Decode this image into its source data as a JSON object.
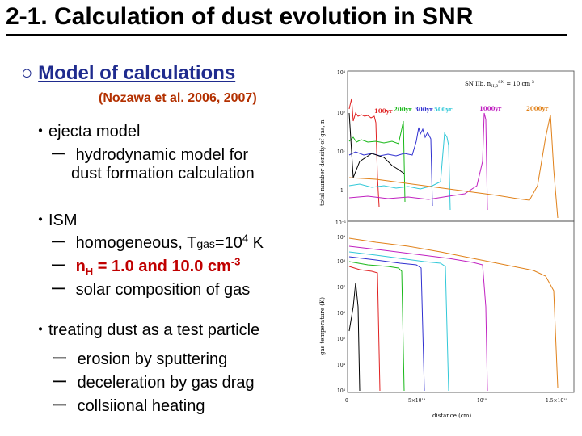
{
  "title": "2-1. Calculation of dust evolution in SNR",
  "subheading": {
    "marker": "○",
    "text": "Model of calculations"
  },
  "citation": "(Nozawa et al. 2006, 2007)",
  "bullets": [
    {
      "marker": "・",
      "text": "ejecta model",
      "items": [
        {
          "dash": "ー",
          "line1": "hydrodynamic model for",
          "line2": "dust formation calculation"
        }
      ]
    },
    {
      "marker": "・",
      "text": "ISM",
      "items": [
        {
          "dash": "ー",
          "pre": "homogeneous, T",
          "sub": "gas",
          "mid": "=10",
          "sup": "4",
          "post": " K"
        },
        {
          "dash": "ー",
          "pre": "n",
          "sub": "H",
          "post": " = 1.0 and 10.0 cm",
          "sup": "-3"
        },
        {
          "dash": "ー",
          "text": "solar composition of gas"
        }
      ]
    },
    {
      "marker": "・",
      "text": "treating dust as a test particle",
      "items": [
        {
          "dash": "ー",
          "text": "erosion by sputtering"
        },
        {
          "dash": "ー",
          "text": "deceleration by gas drag"
        },
        {
          "dash": "ー",
          "text": "collsiional heating"
        }
      ]
    }
  ],
  "figure": {
    "legend": "SN IIb, n",
    "legend_sub": "H,0",
    "legend_sup": "SN",
    "legend_tail": " = 10  cm",
    "legend_exp": "-3",
    "time_labels": [
      {
        "text": "100yr",
        "color": "#e02020"
      },
      {
        "text": "200yr",
        "color": "#18b818"
      },
      {
        "text": "300yr",
        "color": "#3030d0"
      },
      {
        "text": "500yr",
        "color": "#30c8d8"
      },
      {
        "text": "1000yr",
        "color": "#c020c0"
      },
      {
        "text": "2000yr",
        "color": "#e08018"
      }
    ],
    "top_ylabel": "total number density of gas, n",
    "top_yticks": [
      "10³",
      "10²",
      "10¹",
      "1",
      "10⁻¹"
    ],
    "bottom_ylabel": "gas temperature (K)",
    "bottom_yticks": [
      "10⁹",
      "10⁸",
      "10⁷",
      "10⁶",
      "10⁵",
      "10⁴",
      "10³"
    ],
    "xticks": [
      "0",
      "5×10¹⁸",
      "10¹⁹",
      "1.5×10¹⁹"
    ],
    "xlabel": "distance (cm)"
  }
}
